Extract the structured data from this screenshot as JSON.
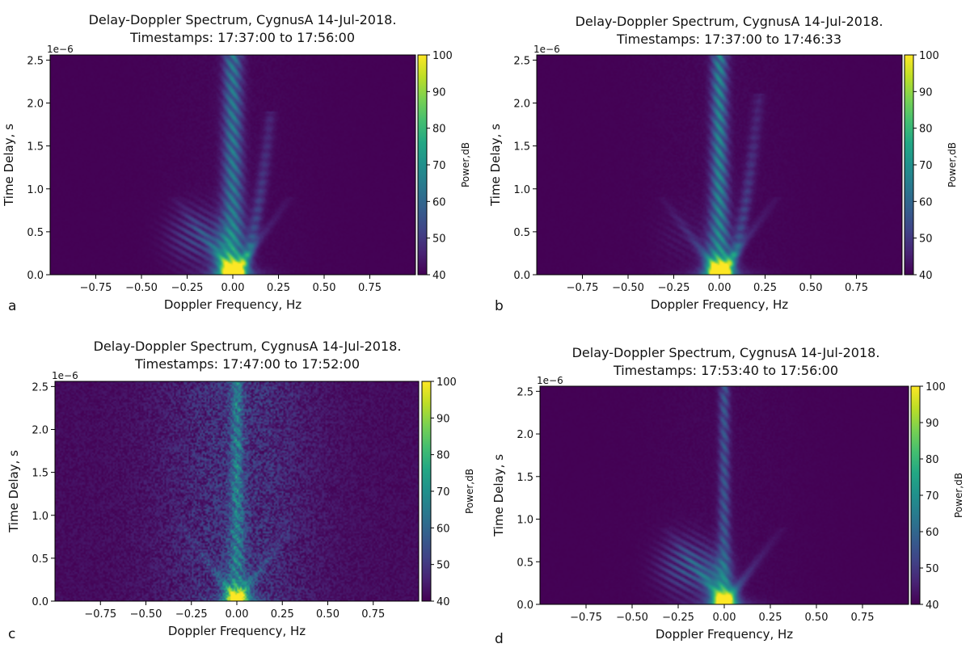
{
  "chart_data": [
    {
      "type": "heatmap",
      "panel_label": "a",
      "title_line1": "Delay-Doppler Spectrum, CygnusA 14-Jul-2018.",
      "title_line2": "Timestamps: 17:37:00 to 17:56:00",
      "xlabel": "Doppler Frequency, Hz",
      "ylabel": "Time Delay, s",
      "y_offset_label": "1e−6",
      "xlim": [
        -1.0,
        1.0
      ],
      "ylim": [
        0,
        2.56
      ],
      "x_ticks": [
        -0.75,
        -0.5,
        -0.25,
        0.0,
        0.25,
        0.5,
        0.75
      ],
      "x_tick_labels": [
        "−0.75",
        "−0.50",
        "−0.25",
        "0.00",
        "0.25",
        "0.50",
        "0.75"
      ],
      "y_ticks": [
        0.0,
        0.5,
        1.0,
        1.5,
        2.0,
        2.5
      ],
      "y_tick_labels": [
        "0.0",
        "0.5",
        "1.0",
        "1.5",
        "2.0",
        "2.5"
      ],
      "colorbar": {
        "label": "Power,dB",
        "range": [
          40,
          100
        ],
        "ticks": [
          40,
          50,
          60,
          70,
          80,
          90,
          100
        ],
        "tick_labels": [
          "40",
          "50",
          "60",
          "70",
          "80",
          "90",
          "100"
        ],
        "colormap": "viridis"
      },
      "features": {
        "central_column": true,
        "column_half_width": 0.035,
        "column_strength": 0.45,
        "side_arc": true,
        "arc_extent_delay": 1.9,
        "left_lobe_strength": 0.5,
        "hot_spot_strength": 0.95,
        "noise": 0.02
      }
    },
    {
      "type": "heatmap",
      "panel_label": "b",
      "title_line1": "Delay-Doppler Spectrum, CygnusA 14-Jul-2018.",
      "title_line2": "Timestamps: 17:37:00 to 17:46:33",
      "xlabel": "Doppler Frequency, Hz",
      "ylabel": "Time Delay, s",
      "y_offset_label": "1e−6",
      "xlim": [
        -1.0,
        1.0
      ],
      "ylim": [
        0,
        2.56
      ],
      "x_ticks": [
        -0.75,
        -0.5,
        -0.25,
        0.0,
        0.25,
        0.5,
        0.75
      ],
      "x_tick_labels": [
        "−0.75",
        "−0.50",
        "−0.25",
        "0.00",
        "0.25",
        "0.50",
        "0.75"
      ],
      "y_ticks": [
        0.0,
        0.5,
        1.0,
        1.5,
        2.0,
        2.5
      ],
      "y_tick_labels": [
        "0.0",
        "0.5",
        "1.0",
        "1.5",
        "2.0",
        "2.5"
      ],
      "colorbar": {
        "label": "Power,dB",
        "range": [
          40,
          100
        ],
        "ticks": [
          40,
          50,
          60,
          70,
          80,
          90,
          100
        ],
        "tick_labels": [
          "40",
          "50",
          "60",
          "70",
          "80",
          "90",
          "100"
        ],
        "colormap": "viridis"
      },
      "features": {
        "central_column": true,
        "column_half_width": 0.03,
        "column_strength": 0.5,
        "side_arc": true,
        "arc_extent_delay": 2.1,
        "left_lobe_strength": 0.1,
        "hot_spot_strength": 0.95,
        "noise": 0.02
      }
    },
    {
      "type": "heatmap",
      "panel_label": "c",
      "title_line1": "Delay-Doppler Spectrum, CygnusA 14-Jul-2018.",
      "title_line2": "Timestamps: 17:47:00 to 17:52:00",
      "xlabel": "Doppler Frequency, Hz",
      "ylabel": "Time Delay, s",
      "y_offset_label": "1e−6",
      "xlim": [
        -1.0,
        1.0
      ],
      "ylim": [
        0,
        2.56
      ],
      "x_ticks": [
        -0.75,
        -0.5,
        -0.25,
        0.0,
        0.25,
        0.5,
        0.75
      ],
      "x_tick_labels": [
        "−0.75",
        "−0.50",
        "−0.25",
        "0.00",
        "0.25",
        "0.50",
        "0.75"
      ],
      "y_ticks": [
        0.0,
        0.5,
        1.0,
        1.5,
        2.0,
        2.5
      ],
      "y_tick_labels": [
        "0.0",
        "0.5",
        "1.0",
        "1.5",
        "2.0",
        "2.5"
      ],
      "colorbar": {
        "label": "Power,dB",
        "range": [
          40,
          100
        ],
        "ticks": [
          40,
          50,
          60,
          70,
          80,
          90,
          100
        ],
        "tick_labels": [
          "40",
          "50",
          "60",
          "70",
          "80",
          "90",
          "100"
        ],
        "colormap": "viridis"
      },
      "features": {
        "central_column": true,
        "column_half_width": 0.025,
        "column_strength": 0.38,
        "side_arc": false,
        "arc_extent_delay": 0,
        "left_lobe_strength": 0.0,
        "hot_spot_strength": 0.55,
        "noise": 0.18
      }
    },
    {
      "type": "heatmap",
      "panel_label": "d",
      "title_line1": "Delay-Doppler Spectrum, CygnusA 14-Jul-2018.",
      "title_line2": "Timestamps: 17:53:40 to 17:56:00",
      "xlabel": "Doppler Frequency, Hz",
      "ylabel": "Time Delay, s",
      "y_offset_label": "1e−6",
      "xlim": [
        -1.0,
        1.0
      ],
      "ylim": [
        0,
        2.56
      ],
      "x_ticks": [
        -0.75,
        -0.5,
        -0.25,
        0.0,
        0.25,
        0.5,
        0.75
      ],
      "x_tick_labels": [
        "−0.75",
        "−0.50",
        "−0.25",
        "0.00",
        "0.25",
        "0.50",
        "0.75"
      ],
      "y_ticks": [
        0.0,
        0.5,
        1.0,
        1.5,
        2.0,
        2.5
      ],
      "y_tick_labels": [
        "0.0",
        "0.5",
        "1.0",
        "1.5",
        "2.0",
        "2.5"
      ],
      "colorbar": {
        "label": "Power,dB",
        "range": [
          40,
          100
        ],
        "ticks": [
          40,
          50,
          60,
          70,
          80,
          90,
          100
        ],
        "tick_labels": [
          "40",
          "50",
          "60",
          "70",
          "80",
          "90",
          "100"
        ],
        "colormap": "viridis"
      },
      "features": {
        "central_column": true,
        "column_half_width": 0.02,
        "column_strength": 0.3,
        "side_arc": false,
        "arc_extent_delay": 0,
        "left_lobe_strength": 0.65,
        "hot_spot_strength": 0.9,
        "noise": 0.02
      }
    }
  ]
}
